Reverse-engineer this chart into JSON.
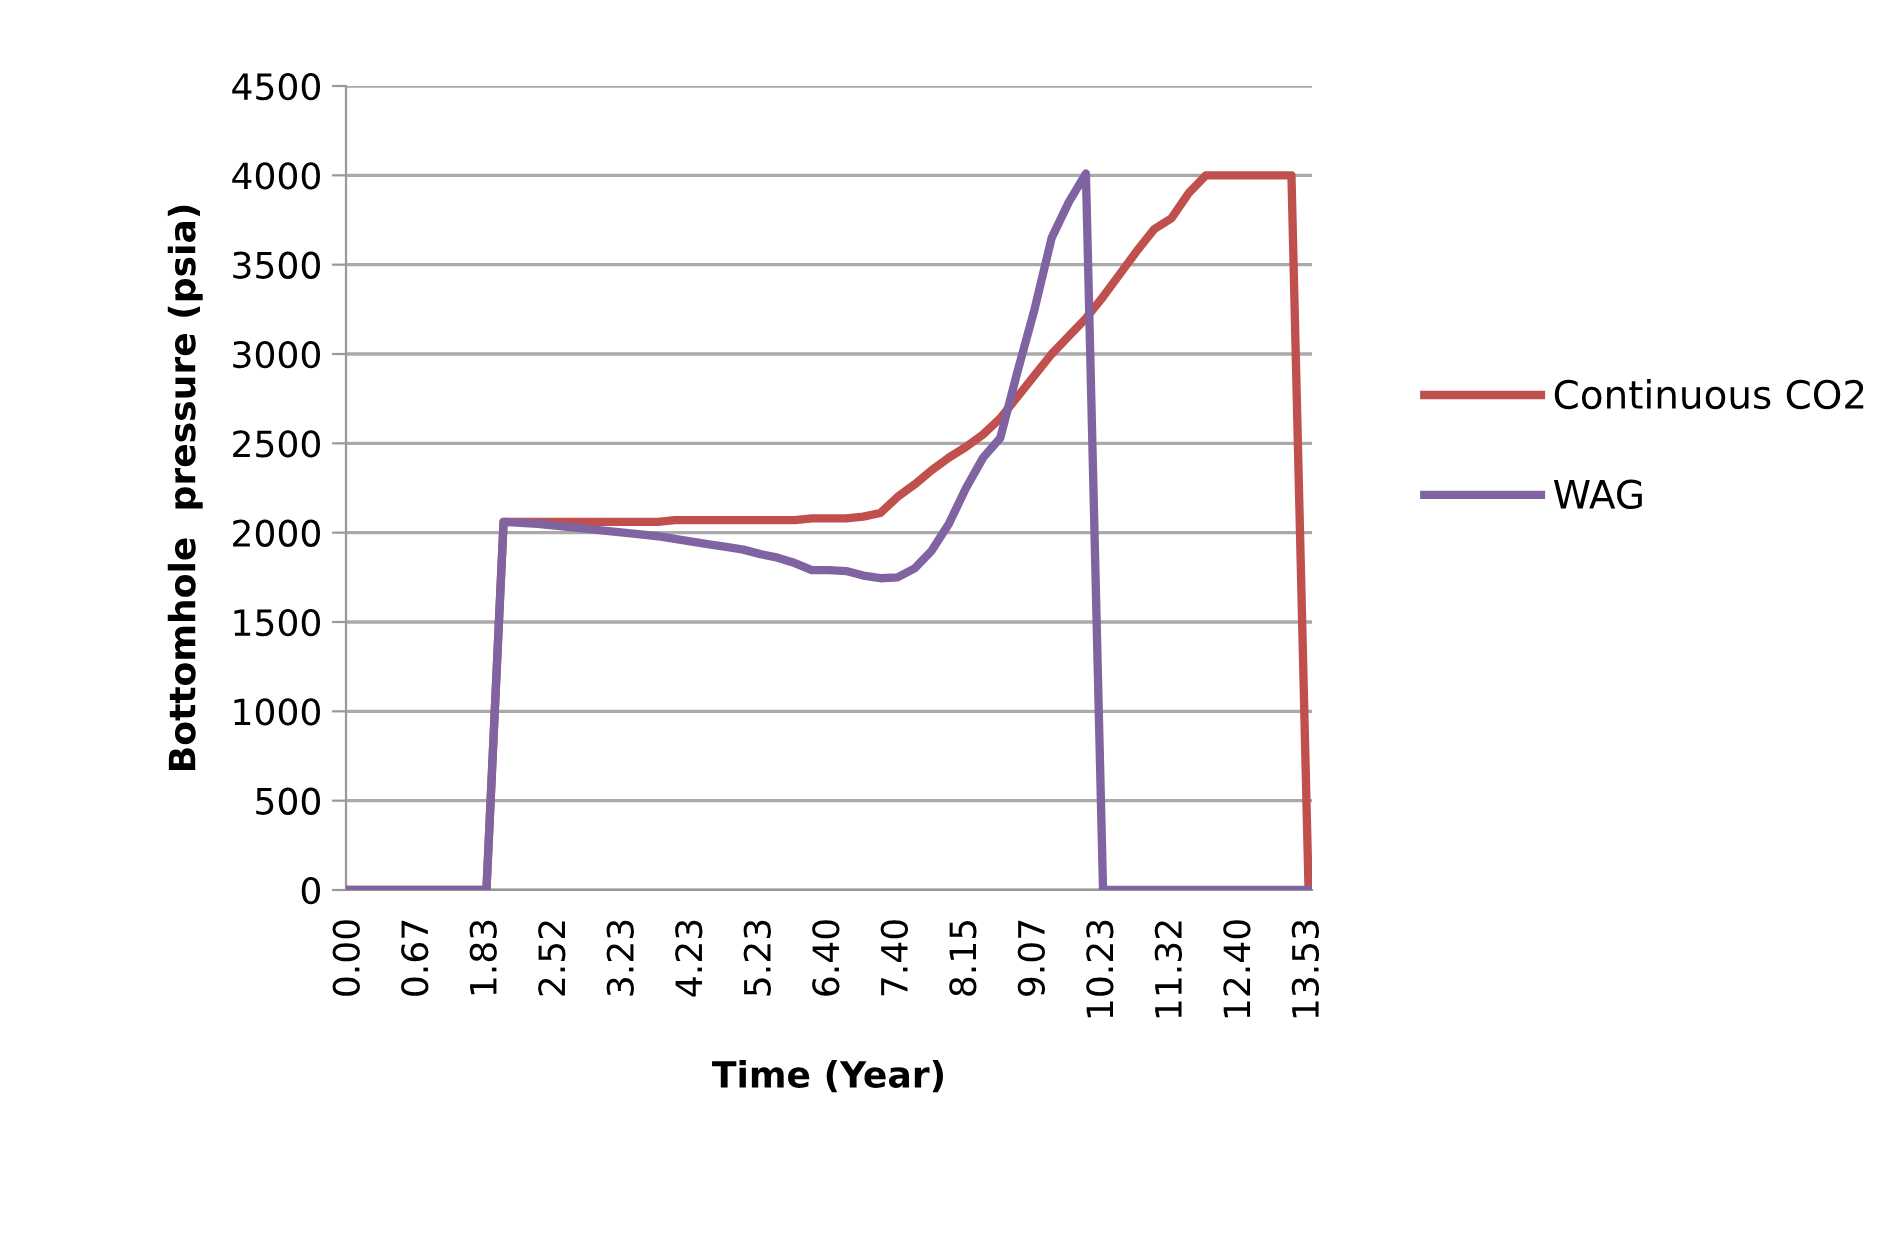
{
  "chart_data": {
    "type": "line",
    "xlabel": "Time (Year)",
    "ylabel": "Bottomhole  pressure (psia)",
    "categories": [
      "0.00",
      null,
      null,
      null,
      "0.67",
      null,
      null,
      null,
      "1.83",
      null,
      null,
      null,
      "2.52",
      null,
      null,
      null,
      "3.23",
      null,
      null,
      null,
      "4.23",
      null,
      null,
      null,
      "5.23",
      null,
      null,
      null,
      "6.40",
      null,
      null,
      null,
      "7.40",
      null,
      null,
      null,
      "8.15",
      null,
      null,
      null,
      "9.07",
      null,
      null,
      null,
      "10.23",
      null,
      null,
      null,
      "11.32",
      null,
      null,
      null,
      "12.40",
      null,
      null,
      null,
      "13.53"
    ],
    "series": [
      {
        "name": "Continuous CO2",
        "color": "#c0504d",
        "values": [
          0,
          0,
          0,
          0,
          0,
          0,
          0,
          0,
          0,
          2060,
          2060,
          2060,
          2060,
          2060,
          2060,
          2060,
          2060,
          2060,
          2060,
          2070,
          2070,
          2070,
          2070,
          2070,
          2070,
          2070,
          2070,
          2080,
          2080,
          2080,
          2090,
          2110,
          2200,
          2270,
          2350,
          2420,
          2480,
          2550,
          2640,
          2760,
          2880,
          3000,
          3100,
          3200,
          3320,
          3450,
          3580,
          3700,
          3760,
          3900,
          4000,
          4000,
          4000,
          4000,
          4000,
          4000,
          0
        ]
      },
      {
        "name": "WAG",
        "color": "#8064a2",
        "values": [
          0,
          0,
          0,
          0,
          0,
          0,
          0,
          0,
          0,
          2060,
          2055,
          2050,
          2040,
          2030,
          2020,
          2010,
          2000,
          1990,
          1980,
          1965,
          1950,
          1935,
          1920,
          1905,
          1880,
          1860,
          1830,
          1790,
          1790,
          1785,
          1760,
          1745,
          1750,
          1800,
          1900,
          2050,
          2250,
          2420,
          2530,
          2900,
          3250,
          3650,
          3850,
          4010,
          0,
          0,
          0,
          0,
          0,
          0,
          0,
          0,
          0,
          0,
          0,
          0,
          0
        ]
      }
    ],
    "ylim": [
      0,
      4500
    ],
    "yticks": [
      0,
      500,
      1000,
      1500,
      2000,
      2500,
      3000,
      3500,
      4000,
      4500
    ],
    "grid": "y",
    "legend": "right",
    "line_style": "solid",
    "marker": "none"
  }
}
